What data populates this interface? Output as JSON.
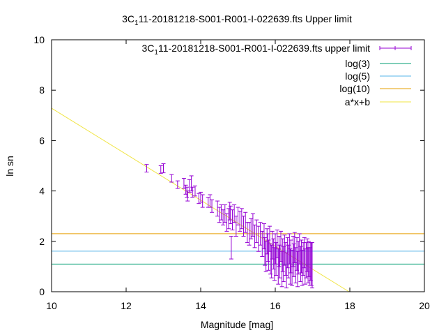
{
  "chart_data": {
    "type": "scatter",
    "title": {
      "main": "3C",
      "sub": "1",
      "rest": "11-20181218-S001-R001-I-022639.fts Upper limit"
    },
    "xlabel": "Magnitude [mag]",
    "ylabel": "ln sn",
    "xlim": [
      10,
      20
    ],
    "ylim": [
      0,
      10
    ],
    "xticks": [
      "10",
      "12",
      "14",
      "16",
      "18",
      "20"
    ],
    "yticks": [
      "0",
      "2",
      "4",
      "6",
      "8",
      "10"
    ],
    "grid": false,
    "legend_position": "top-right",
    "series": [
      {
        "name": "3C_1 11-20181218-S001-R001-I-022639.fts upper limit",
        "legend_main": "3C",
        "legend_sub": "1",
        "legend_rest": "11-20181218-S001-R001-I-022639.fts upper limit",
        "kind": "errorbars",
        "color": "#9400d3",
        "points": [
          [
            12.55,
            4.9,
            0.15
          ],
          [
            12.93,
            4.85,
            0.15
          ],
          [
            13.0,
            4.9,
            0.18
          ],
          [
            13.22,
            4.5,
            0.15
          ],
          [
            13.38,
            4.25,
            0.15
          ],
          [
            13.55,
            4.3,
            0.2
          ],
          [
            13.6,
            4.05,
            0.18
          ],
          [
            13.63,
            3.95,
            0.2
          ],
          [
            13.65,
            3.8,
            0.2
          ],
          [
            13.7,
            4.2,
            0.25
          ],
          [
            13.75,
            4.3,
            0.3
          ],
          [
            13.78,
            3.95,
            0.2
          ],
          [
            13.85,
            4.0,
            0.2
          ],
          [
            13.95,
            3.7,
            0.2
          ],
          [
            14.0,
            3.75,
            0.2
          ],
          [
            14.05,
            3.6,
            0.25
          ],
          [
            14.2,
            3.55,
            0.2
          ],
          [
            14.25,
            3.6,
            0.25
          ],
          [
            14.3,
            3.4,
            0.25
          ],
          [
            14.45,
            3.3,
            0.3
          ],
          [
            14.5,
            3.05,
            0.3
          ],
          [
            14.55,
            3.15,
            0.3
          ],
          [
            14.6,
            2.95,
            0.3
          ],
          [
            14.65,
            3.1,
            0.35
          ],
          [
            14.7,
            2.75,
            0.35
          ],
          [
            14.75,
            2.9,
            0.4
          ],
          [
            14.78,
            3.2,
            0.35
          ],
          [
            14.8,
            3.05,
            0.35
          ],
          [
            14.82,
            1.75,
            0.45
          ],
          [
            14.85,
            2.85,
            0.4
          ],
          [
            14.9,
            3.1,
            0.35
          ],
          [
            14.95,
            2.6,
            0.4
          ],
          [
            15.0,
            3.0,
            0.35
          ],
          [
            15.05,
            2.8,
            0.4
          ],
          [
            15.1,
            2.9,
            0.4
          ],
          [
            15.15,
            2.6,
            0.4
          ],
          [
            15.2,
            2.75,
            0.4
          ],
          [
            15.25,
            2.35,
            0.4
          ],
          [
            15.3,
            2.3,
            0.45
          ],
          [
            15.35,
            2.5,
            0.4
          ],
          [
            15.4,
            2.65,
            0.45
          ],
          [
            15.45,
            2.2,
            0.45
          ],
          [
            15.5,
            2.4,
            0.45
          ],
          [
            15.55,
            2.1,
            0.5
          ],
          [
            15.6,
            2.3,
            0.45
          ],
          [
            15.65,
            1.9,
            0.5
          ],
          [
            15.7,
            2.2,
            0.5
          ],
          [
            15.72,
            1.6,
            0.55
          ],
          [
            15.75,
            1.4,
            0.6
          ],
          [
            15.78,
            2.0,
            0.5
          ],
          [
            15.8,
            1.75,
            0.55
          ],
          [
            15.82,
            1.45,
            0.6
          ],
          [
            15.85,
            2.1,
            0.5
          ],
          [
            15.87,
            1.3,
            0.6
          ],
          [
            15.9,
            1.2,
            0.65
          ],
          [
            15.92,
            1.85,
            0.55
          ],
          [
            15.95,
            1.5,
            0.6
          ],
          [
            15.98,
            1.1,
            0.65
          ],
          [
            16.0,
            1.7,
            0.6
          ],
          [
            16.02,
            1.3,
            0.65
          ],
          [
            16.05,
            1.9,
            0.55
          ],
          [
            16.08,
            1.0,
            0.7
          ],
          [
            16.1,
            1.6,
            0.6
          ],
          [
            16.12,
            1.2,
            0.65
          ],
          [
            16.15,
            1.8,
            0.6
          ],
          [
            16.18,
            0.9,
            0.7
          ],
          [
            16.2,
            1.45,
            0.65
          ],
          [
            16.22,
            1.1,
            0.7
          ],
          [
            16.25,
            1.65,
            0.6
          ],
          [
            16.28,
            1.3,
            0.65
          ],
          [
            16.3,
            0.85,
            0.7
          ],
          [
            16.33,
            1.55,
            0.6
          ],
          [
            16.35,
            1.2,
            0.65
          ],
          [
            16.38,
            1.7,
            0.6
          ],
          [
            16.4,
            1.0,
            0.7
          ],
          [
            16.42,
            1.4,
            0.65
          ],
          [
            16.45,
            0.95,
            0.7
          ],
          [
            16.48,
            1.6,
            0.6
          ],
          [
            16.5,
            1.25,
            0.65
          ],
          [
            16.52,
            1.75,
            0.6
          ],
          [
            16.55,
            1.05,
            0.7
          ],
          [
            16.58,
            1.5,
            0.65
          ],
          [
            16.6,
            0.9,
            0.7
          ],
          [
            16.62,
            1.35,
            0.65
          ],
          [
            16.65,
            1.7,
            0.6
          ],
          [
            16.68,
            1.1,
            0.7
          ],
          [
            16.7,
            1.4,
            0.65
          ],
          [
            16.72,
            0.95,
            0.7
          ],
          [
            16.75,
            1.3,
            0.65
          ],
          [
            16.78,
            1.55,
            0.6
          ],
          [
            16.8,
            1.0,
            0.7
          ],
          [
            16.83,
            1.25,
            0.7
          ],
          [
            16.86,
            1.45,
            0.65
          ],
          [
            16.88,
            1.05,
            0.7
          ],
          [
            16.9,
            1.3,
            0.7
          ],
          [
            16.93,
            1.0,
            0.75
          ],
          [
            16.95,
            1.2,
            0.75
          ],
          [
            16.97,
            1.1,
            0.85
          ],
          [
            16.99,
            1.05,
            0.9
          ]
        ]
      },
      {
        "name": "log(3)",
        "kind": "hline",
        "value": 1.0986,
        "color": "#009e73"
      },
      {
        "name": "log(5)",
        "kind": "hline",
        "value": 1.6094,
        "color": "#56b4e9"
      },
      {
        "name": "log(10)",
        "kind": "hline",
        "value": 2.3026,
        "color": "#e69f00"
      },
      {
        "name": "a*x+b",
        "kind": "line",
        "slope": -0.9127,
        "intercept": 16.41,
        "color": "#f0e442"
      }
    ]
  }
}
